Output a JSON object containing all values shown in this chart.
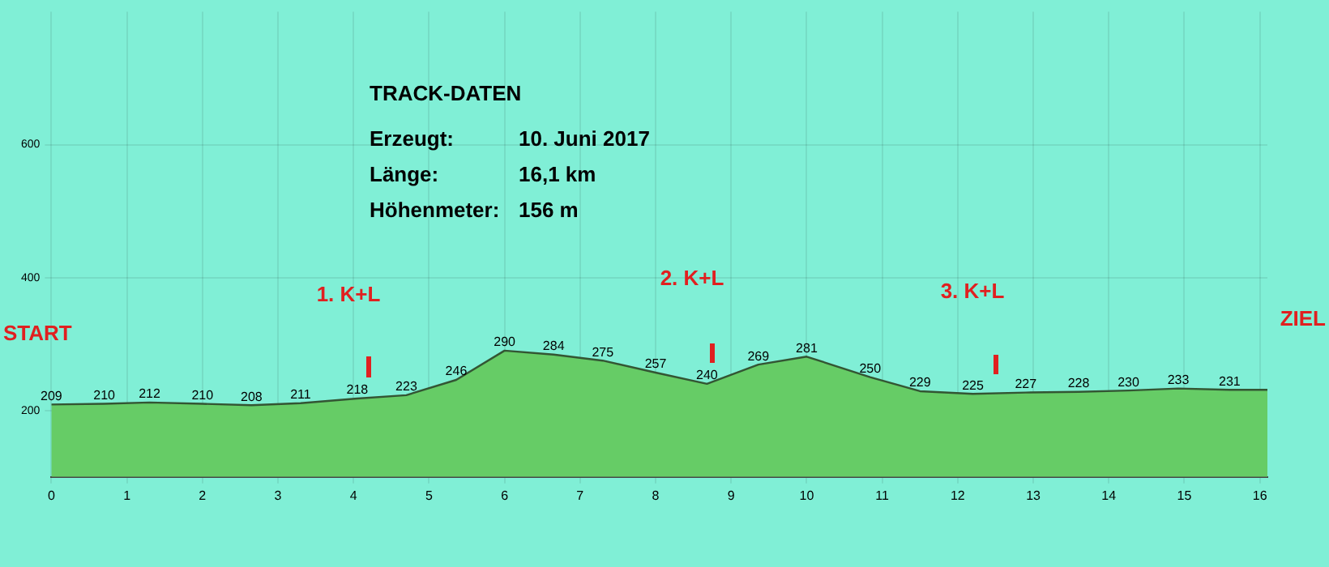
{
  "chart_data": {
    "type": "area",
    "title": "TRACK-DATEN",
    "x": [
      0,
      0.7,
      1.3,
      2.0,
      2.65,
      3.3,
      4.05,
      4.7,
      5.36,
      6.0,
      6.65,
      7.3,
      8.0,
      8.68,
      9.36,
      10.0,
      10.84,
      11.5,
      12.2,
      12.9,
      13.6,
      14.26,
      14.92,
      15.6,
      16.1
    ],
    "series": [
      {
        "color": "#66cc66",
        "values": [
          209,
          210,
          212,
          210,
          208,
          211,
          218,
          223,
          246,
          290,
          284,
          275,
          257,
          240,
          269,
          281,
          250,
          229,
          225,
          227,
          228,
          230,
          233,
          231,
          231
        ],
        "value_labels": [
          "209",
          "210",
          "212",
          "210",
          "208",
          "211",
          "218",
          "223",
          "246",
          "290",
          "284",
          "275",
          "257",
          "240",
          "269",
          "281",
          "250",
          "229",
          "225",
          "227",
          "228",
          "230",
          "233",
          "231",
          null
        ]
      }
    ],
    "xlim": [
      0,
      16.1
    ],
    "xticks": [
      0,
      1,
      2,
      3,
      4,
      5,
      6,
      7,
      8,
      9,
      10,
      11,
      12,
      13,
      14,
      15,
      16
    ],
    "ylim": [
      100,
      800
    ],
    "yticks": [
      200,
      400,
      600
    ],
    "grid": true,
    "legend": false,
    "annotations": [
      "Erzeugt:",
      "10. Juni 2017",
      "Länge:",
      "16,1 km",
      "Höhenmeter:",
      "156 m",
      "START",
      "ZIEL",
      "1. K+L",
      "2. K+L",
      "3. K+L"
    ]
  }
}
